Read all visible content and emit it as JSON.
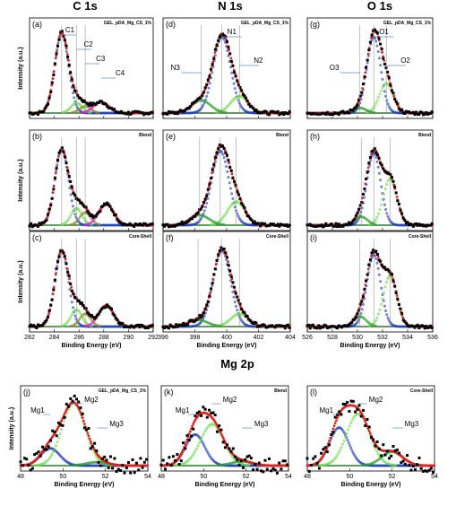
{
  "figure": {
    "column_titles": [
      "C 1s",
      "N 1s",
      "O 1s"
    ],
    "row_title_mg": "Mg 2p",
    "y_label": "Intensity (a.u.)",
    "x_label": "Binding Energy (eV)"
  },
  "colors": {
    "experimental": "#000000",
    "envelope": "#e3201b",
    "main_component": "#1f3fbf",
    "component_green": "#2ca02c",
    "component_lightgreen": "#66dd44",
    "component_olive": "#8b8b2b",
    "component_magenta": "#e020d0",
    "baseline": "#2c7a2c",
    "arrow": "#5b8fc7"
  },
  "chart_data": [
    {
      "type": "line",
      "panel": "(a)",
      "region": "C 1s",
      "sample": "GEL_pDA_Mg_CS_1%",
      "xlim": [
        282,
        292
      ],
      "xticks": [
        282,
        284,
        286,
        288,
        290,
        292
      ],
      "peak_labels": [
        "C1",
        "C2",
        "C3",
        "C4"
      ],
      "series": [
        {
          "component": "C1",
          "center": 284.6,
          "height": 0.95
        },
        {
          "component": "C2",
          "center": 285.8,
          "height": 0.12
        },
        {
          "component": "C3",
          "center": 286.5,
          "height": 0.08
        },
        {
          "component": "C4",
          "center": 287.8,
          "height": 0.13
        }
      ]
    },
    {
      "type": "line",
      "panel": "(b)",
      "region": "C 1s",
      "sample": "Blend",
      "xlim": [
        282,
        292
      ],
      "xticks": [
        282,
        284,
        286,
        288,
        290,
        292
      ],
      "series": [
        {
          "component": "C1",
          "center": 284.6,
          "height": 0.9
        },
        {
          "component": "C2",
          "center": 285.8,
          "height": 0.2
        },
        {
          "component": "C3",
          "center": 286.5,
          "height": 0.15
        },
        {
          "component": "C4",
          "center": 288.2,
          "height": 0.25
        }
      ]
    },
    {
      "type": "line",
      "panel": "(c)",
      "region": "C 1s",
      "sample": "Core-Shell",
      "xlim": [
        282,
        292
      ],
      "xticks": [
        282,
        284,
        286,
        288,
        290,
        292
      ],
      "series": [
        {
          "component": "C1",
          "center": 284.6,
          "height": 0.9
        },
        {
          "component": "C2",
          "center": 285.8,
          "height": 0.2
        },
        {
          "component": "C3",
          "center": 286.5,
          "height": 0.15
        },
        {
          "component": "C4",
          "center": 288.2,
          "height": 0.25
        }
      ]
    },
    {
      "type": "line",
      "panel": "(d)",
      "region": "N 1s",
      "sample": "GEL_pDA_Mg_CS_1%",
      "xlim": [
        396,
        404
      ],
      "xticks": [
        396,
        398,
        400,
        402,
        404
      ],
      "peak_labels": [
        "N1",
        "N2",
        "N3"
      ],
      "series": [
        {
          "component": "N1",
          "center": 399.7,
          "height": 0.9
        },
        {
          "component": "N2",
          "center": 400.8,
          "height": 0.2
        },
        {
          "component": "N3",
          "center": 398.4,
          "height": 0.15
        }
      ]
    },
    {
      "type": "line",
      "panel": "(e)",
      "region": "N 1s",
      "sample": "Blend",
      "xlim": [
        396,
        404
      ],
      "xticks": [
        396,
        398,
        400,
        402,
        404
      ],
      "series": [
        {
          "component": "N1",
          "center": 399.6,
          "height": 0.88
        },
        {
          "component": "N2",
          "center": 400.6,
          "height": 0.28
        },
        {
          "component": "N3",
          "center": 398.3,
          "height": 0.12
        }
      ]
    },
    {
      "type": "line",
      "panel": "(f)",
      "region": "N 1s",
      "sample": "Core-Shell",
      "xlim": [
        396,
        404
      ],
      "xticks": [
        396,
        398,
        400,
        402,
        404
      ],
      "series": [
        {
          "component": "N1",
          "center": 399.7,
          "height": 0.9
        },
        {
          "component": "N2",
          "center": 400.8,
          "height": 0.15
        },
        {
          "component": "N3",
          "center": 398.2,
          "height": 0.08
        }
      ]
    },
    {
      "type": "line",
      "panel": "(g)",
      "region": "O 1s",
      "sample": "GEL_pDA_Mg_CS_1%",
      "xlim": [
        526,
        536
      ],
      "xticks": [
        526,
        528,
        530,
        532,
        534,
        536
      ],
      "peak_labels": [
        "O1",
        "O2",
        "O3"
      ],
      "series": [
        {
          "component": "O1",
          "center": 531.3,
          "height": 0.9
        },
        {
          "component": "O2",
          "center": 532.3,
          "height": 0.35
        },
        {
          "component": "O3",
          "center": 530.2,
          "height": 0.06
        }
      ]
    },
    {
      "type": "line",
      "panel": "(h)",
      "region": "O 1s",
      "sample": "Blend",
      "xlim": [
        526,
        536
      ],
      "xticks": [
        526,
        528,
        530,
        532,
        534,
        536
      ],
      "series": [
        {
          "component": "O1",
          "center": 531.3,
          "height": 0.85
        },
        {
          "component": "O2",
          "center": 532.6,
          "height": 0.55
        },
        {
          "component": "O3",
          "center": 530.3,
          "height": 0.1
        }
      ]
    },
    {
      "type": "line",
      "panel": "(i)",
      "region": "O 1s",
      "sample": "Core-Shell",
      "xlim": [
        526,
        536
      ],
      "xticks": [
        526,
        528,
        530,
        532,
        534,
        536
      ],
      "series": [
        {
          "component": "O1",
          "center": 531.3,
          "height": 0.85
        },
        {
          "component": "O2",
          "center": 532.6,
          "height": 0.6
        },
        {
          "component": "O3",
          "center": 530.2,
          "height": 0.12
        }
      ]
    },
    {
      "type": "line",
      "panel": "(j)",
      "region": "Mg 2p",
      "sample": "GEL_pDA_Mg_CS_1%",
      "xlim": [
        48,
        54
      ],
      "xticks": [
        48,
        50,
        52,
        54
      ],
      "peak_labels": [
        "Mg1",
        "Mg2",
        "Mg3"
      ],
      "series": [
        {
          "component": "Mg1",
          "center": 49.4,
          "height": 0.25
        },
        {
          "component": "Mg2",
          "center": 50.5,
          "height": 0.9
        },
        {
          "component": "Mg3",
          "center": 51.6,
          "height": 0.05
        }
      ]
    },
    {
      "type": "line",
      "panel": "(k)",
      "region": "Mg 2p",
      "sample": "Blend",
      "xlim": [
        48,
        54
      ],
      "xticks": [
        48,
        50,
        52,
        54
      ],
      "peak_labels": [
        "Mg1",
        "Mg2",
        "Mg3"
      ],
      "series": [
        {
          "component": "Mg1",
          "center": 49.6,
          "height": 0.45
        },
        {
          "component": "Mg2",
          "center": 50.4,
          "height": 0.6
        },
        {
          "component": "Mg3",
          "center": 51.8,
          "height": 0.06
        }
      ]
    },
    {
      "type": "line",
      "panel": "(l)",
      "region": "Mg 2p",
      "sample": "Core-Shell",
      "xlim": [
        48,
        54
      ],
      "xticks": [
        48,
        50,
        52,
        54
      ],
      "peak_labels": [
        "Mg1",
        "Mg2",
        "Mg3"
      ],
      "series": [
        {
          "component": "Mg1",
          "center": 49.5,
          "height": 0.55
        },
        {
          "component": "Mg2",
          "center": 50.4,
          "height": 0.75
        },
        {
          "component": "Mg3",
          "center": 52.0,
          "height": 0.2
        }
      ]
    }
  ]
}
